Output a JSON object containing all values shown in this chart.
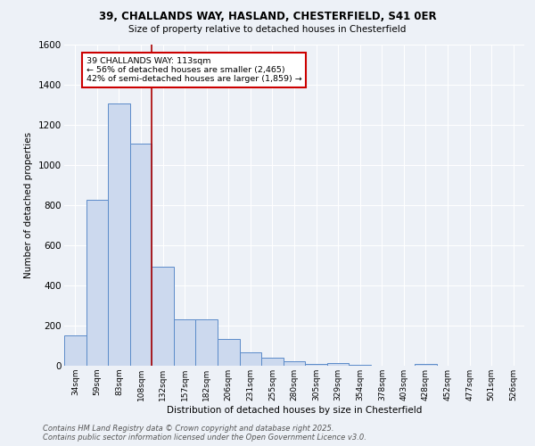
{
  "title_line1": "39, CHALLANDS WAY, HASLAND, CHESTERFIELD, S41 0ER",
  "title_line2": "Size of property relative to detached houses in Chesterfield",
  "xlabel": "Distribution of detached houses by size in Chesterfield",
  "ylabel": "Number of detached properties",
  "categories": [
    "34sqm",
    "59sqm",
    "83sqm",
    "108sqm",
    "132sqm",
    "157sqm",
    "182sqm",
    "206sqm",
    "231sqm",
    "255sqm",
    "280sqm",
    "305sqm",
    "329sqm",
    "354sqm",
    "378sqm",
    "403sqm",
    "428sqm",
    "452sqm",
    "477sqm",
    "501sqm",
    "526sqm"
  ],
  "values": [
    150,
    825,
    1305,
    1105,
    495,
    232,
    232,
    135,
    68,
    40,
    22,
    10,
    12,
    6,
    0,
    0,
    10,
    0,
    0,
    0,
    0
  ],
  "bar_color": "#ccd9ee",
  "bar_edge_color": "#5b8bc9",
  "vline_color": "#aa0000",
  "annotation_text": "39 CHALLANDS WAY: 113sqm\n← 56% of detached houses are smaller (2,465)\n42% of semi-detached houses are larger (1,859) →",
  "annotation_box_color": "white",
  "annotation_box_edge_color": "#cc0000",
  "ylim": [
    0,
    1600
  ],
  "yticks": [
    0,
    200,
    400,
    600,
    800,
    1000,
    1200,
    1400,
    1600
  ],
  "footer_line1": "Contains HM Land Registry data © Crown copyright and database right 2025.",
  "footer_line2": "Contains public sector information licensed under the Open Government Licence v3.0.",
  "bg_color": "#edf1f7",
  "grid_color": "#ffffff"
}
